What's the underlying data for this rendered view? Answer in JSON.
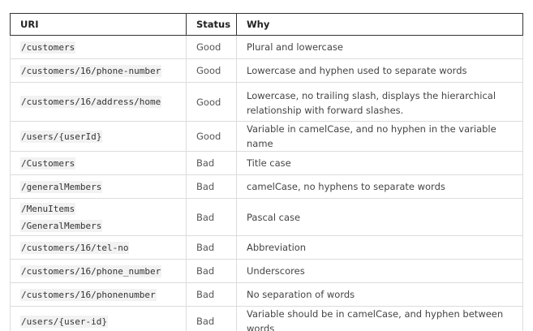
{
  "table": {
    "headers": [
      "URI",
      "Status",
      "Why"
    ],
    "rows": [
      {
        "uri": "/customers",
        "status": "Good",
        "why": "Plural and lowercase"
      },
      {
        "uri": "/customers/16/phone-number",
        "status": "Good",
        "why": "Lowercase and hyphen used to separate words"
      },
      {
        "uri": "/customers/16/address/home",
        "status": "Good",
        "why": "Lowercase, no trailing slash, displays the hierarchical relationship with forward slashes."
      },
      {
        "uri": "/users/{userId}",
        "status": "Good",
        "why": "Variable in camelCase, and no hyphen in the variable name"
      },
      {
        "uri": "/Customers",
        "status": "Bad",
        "why": "Title case"
      },
      {
        "uri": "/generalMembers",
        "status": "Bad",
        "why": "camelCase, no hyphens to separate words"
      },
      {
        "uri_lines": [
          "/MenuItems",
          "/GeneralMembers"
        ],
        "status": "Bad",
        "why": "Pascal case"
      },
      {
        "uri": "/customers/16/tel-no",
        "status": "Bad",
        "why": "Abbreviation"
      },
      {
        "uri": "/customers/16/phone_number",
        "status": "Bad",
        "why": "Underscores"
      },
      {
        "uri": "/customers/16/phonenumber",
        "status": "Bad",
        "why": "No separation of words"
      },
      {
        "uri": "/users/{user-id}",
        "status": "Bad",
        "why": "Variable should be in camelCase, and hyphen between words"
      }
    ]
  }
}
